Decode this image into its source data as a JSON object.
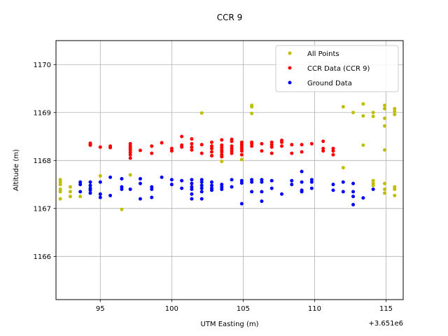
{
  "chart_data": {
    "type": "scatter",
    "title": "CCR 9",
    "xlabel": "UTM Easting (m)",
    "ylabel": "Altitude (m)",
    "x_offset_label": "+3.651e6",
    "x_ticks": [
      "95",
      "100",
      "105",
      "110",
      "115"
    ],
    "y_ticks": [
      "1166",
      "1167",
      "1168",
      "1169",
      "1170"
    ],
    "xlim": [
      3651091.9,
      3651116.2
    ],
    "ylim": [
      1165.1,
      1170.5
    ],
    "grid": true,
    "legend_position": "upper right",
    "series": [
      {
        "name": "All Points",
        "color": "#bfbf00",
        "points": [
          [
            3651092.2,
            1167.6
          ],
          [
            3651092.2,
            1167.55
          ],
          [
            3651092.2,
            1167.5
          ],
          [
            3651092.2,
            1167.4
          ],
          [
            3651092.2,
            1167.35
          ],
          [
            3651092.2,
            1167.2
          ],
          [
            3651092.9,
            1167.45
          ],
          [
            3651092.9,
            1167.35
          ],
          [
            3651092.9,
            1167.25
          ],
          [
            3651093.6,
            1167.5
          ],
          [
            3651093.6,
            1167.25
          ],
          [
            3651095.0,
            1167.68
          ],
          [
            3651095.0,
            1167.3
          ],
          [
            3651096.5,
            1166.98
          ],
          [
            3651097.1,
            1167.7
          ],
          [
            3651102.1,
            1168.99
          ],
          [
            3651103.5,
            1167.98
          ],
          [
            3651104.9,
            1168.02
          ],
          [
            3651105.6,
            1169.15
          ],
          [
            3651105.6,
            1169.12
          ],
          [
            3651105.6,
            1168.98
          ],
          [
            3651112.0,
            1169.12
          ],
          [
            3651112.0,
            1167.85
          ],
          [
            3651112.7,
            1169.0
          ],
          [
            3651113.4,
            1169.18
          ],
          [
            3651113.4,
            1168.93
          ],
          [
            3651113.4,
            1168.32
          ],
          [
            3651114.1,
            1169.0
          ],
          [
            3651114.1,
            1168.92
          ],
          [
            3651114.1,
            1167.58
          ],
          [
            3651114.1,
            1167.52
          ],
          [
            3651114.1,
            1167.48
          ],
          [
            3651114.9,
            1169.15
          ],
          [
            3651114.9,
            1169.08
          ],
          [
            3651114.9,
            1168.88
          ],
          [
            3651114.9,
            1168.72
          ],
          [
            3651114.9,
            1168.22
          ],
          [
            3651114.9,
            1167.52
          ],
          [
            3651114.9,
            1167.4
          ],
          [
            3651114.9,
            1167.32
          ],
          [
            3651115.6,
            1169.08
          ],
          [
            3651115.6,
            1169.02
          ],
          [
            3651115.6,
            1168.96
          ],
          [
            3651115.6,
            1167.45
          ],
          [
            3651115.6,
            1167.4
          ],
          [
            3651115.6,
            1167.27
          ]
        ]
      },
      {
        "name": "CCR Data (CCR 9)",
        "color": "#ff0000",
        "points": [
          [
            3651094.3,
            1168.36
          ],
          [
            3651094.3,
            1168.33
          ],
          [
            3651094.3,
            1168.32
          ],
          [
            3651095.0,
            1168.28
          ],
          [
            3651095.7,
            1168.3
          ],
          [
            3651095.7,
            1168.27
          ],
          [
            3651097.1,
            1168.35
          ],
          [
            3651097.1,
            1168.3
          ],
          [
            3651097.1,
            1168.26
          ],
          [
            3651097.1,
            1168.22
          ],
          [
            3651097.1,
            1168.17
          ],
          [
            3651097.1,
            1168.12
          ],
          [
            3651097.1,
            1168.05
          ],
          [
            3651097.8,
            1168.21
          ],
          [
            3651098.6,
            1168.3
          ],
          [
            3651098.6,
            1168.15
          ],
          [
            3651099.3,
            1168.37
          ],
          [
            3651100.0,
            1168.25
          ],
          [
            3651100.0,
            1168.2
          ],
          [
            3651100.7,
            1168.5
          ],
          [
            3651100.7,
            1168.32
          ],
          [
            3651100.7,
            1168.28
          ],
          [
            3651101.4,
            1168.45
          ],
          [
            3651101.4,
            1168.35
          ],
          [
            3651101.4,
            1168.28
          ],
          [
            3651101.4,
            1168.22
          ],
          [
            3651102.1,
            1168.33
          ],
          [
            3651102.1,
            1168.15
          ],
          [
            3651102.8,
            1168.38
          ],
          [
            3651102.8,
            1168.3
          ],
          [
            3651102.8,
            1168.25
          ],
          [
            3651102.8,
            1168.18
          ],
          [
            3651102.8,
            1168.1
          ],
          [
            3651103.5,
            1168.43
          ],
          [
            3651103.5,
            1168.32
          ],
          [
            3651103.5,
            1168.27
          ],
          [
            3651103.5,
            1168.22
          ],
          [
            3651103.5,
            1168.18
          ],
          [
            3651103.5,
            1168.12
          ],
          [
            3651103.5,
            1168.08
          ],
          [
            3651104.2,
            1168.44
          ],
          [
            3651104.2,
            1168.4
          ],
          [
            3651104.2,
            1168.3
          ],
          [
            3651104.2,
            1168.25
          ],
          [
            3651104.2,
            1168.2
          ],
          [
            3651104.2,
            1168.15
          ],
          [
            3651104.9,
            1168.38
          ],
          [
            3651104.9,
            1168.34
          ],
          [
            3651104.9,
            1168.3
          ],
          [
            3651104.9,
            1168.25
          ],
          [
            3651104.9,
            1168.2
          ],
          [
            3651104.9,
            1168.12
          ],
          [
            3651105.6,
            1168.38
          ],
          [
            3651105.6,
            1168.35
          ],
          [
            3651105.6,
            1168.3
          ],
          [
            3651106.3,
            1168.35
          ],
          [
            3651106.3,
            1168.2
          ],
          [
            3651107.0,
            1168.38
          ],
          [
            3651107.0,
            1168.33
          ],
          [
            3651107.0,
            1168.28
          ],
          [
            3651107.0,
            1168.15
          ],
          [
            3651107.7,
            1168.42
          ],
          [
            3651107.7,
            1168.38
          ],
          [
            3651107.7,
            1168.3
          ],
          [
            3651108.4,
            1168.33
          ],
          [
            3651108.4,
            1168.15
          ],
          [
            3651109.1,
            1168.33
          ],
          [
            3651109.1,
            1168.18
          ],
          [
            3651109.8,
            1168.35
          ],
          [
            3651110.6,
            1168.4
          ],
          [
            3651110.6,
            1168.25
          ],
          [
            3651110.6,
            1168.2
          ],
          [
            3651111.3,
            1168.25
          ],
          [
            3651111.3,
            1168.2
          ],
          [
            3651111.3,
            1168.12
          ]
        ]
      },
      {
        "name": "Ground Data",
        "color": "#0000ff",
        "points": [
          [
            3651093.6,
            1167.55
          ],
          [
            3651093.6,
            1167.5
          ],
          [
            3651093.6,
            1167.35
          ],
          [
            3651094.3,
            1167.55
          ],
          [
            3651094.3,
            1167.48
          ],
          [
            3651094.3,
            1167.42
          ],
          [
            3651094.3,
            1167.38
          ],
          [
            3651094.3,
            1167.32
          ],
          [
            3651095.0,
            1167.55
          ],
          [
            3651095.0,
            1167.3
          ],
          [
            3651095.0,
            1167.23
          ],
          [
            3651095.7,
            1167.65
          ],
          [
            3651095.7,
            1167.27
          ],
          [
            3651096.5,
            1167.62
          ],
          [
            3651096.5,
            1167.45
          ],
          [
            3651096.5,
            1167.4
          ],
          [
            3651097.1,
            1167.4
          ],
          [
            3651097.8,
            1167.62
          ],
          [
            3651097.8,
            1167.52
          ],
          [
            3651097.8,
            1167.2
          ],
          [
            3651098.6,
            1167.45
          ],
          [
            3651098.6,
            1167.4
          ],
          [
            3651098.6,
            1167.23
          ],
          [
            3651099.3,
            1167.65
          ],
          [
            3651100.0,
            1167.6
          ],
          [
            3651100.0,
            1167.5
          ],
          [
            3651100.7,
            1167.58
          ],
          [
            3651100.7,
            1167.42
          ],
          [
            3651101.4,
            1167.6
          ],
          [
            3651101.4,
            1167.52
          ],
          [
            3651101.4,
            1167.45
          ],
          [
            3651101.4,
            1167.4
          ],
          [
            3651101.4,
            1167.3
          ],
          [
            3651101.4,
            1167.2
          ],
          [
            3651102.1,
            1167.6
          ],
          [
            3651102.1,
            1167.55
          ],
          [
            3651102.1,
            1167.48
          ],
          [
            3651102.1,
            1167.42
          ],
          [
            3651102.1,
            1167.35
          ],
          [
            3651102.1,
            1167.2
          ],
          [
            3651102.8,
            1167.55
          ],
          [
            3651102.8,
            1167.48
          ],
          [
            3651102.8,
            1167.42
          ],
          [
            3651102.8,
            1167.38
          ],
          [
            3651103.5,
            1167.5
          ],
          [
            3651103.5,
            1167.45
          ],
          [
            3651103.5,
            1167.4
          ],
          [
            3651104.2,
            1167.6
          ],
          [
            3651104.2,
            1167.45
          ],
          [
            3651104.9,
            1167.58
          ],
          [
            3651104.9,
            1167.53
          ],
          [
            3651104.9,
            1167.1
          ],
          [
            3651105.6,
            1167.6
          ],
          [
            3651105.6,
            1167.55
          ],
          [
            3651105.6,
            1167.35
          ],
          [
            3651106.3,
            1167.6
          ],
          [
            3651106.3,
            1167.55
          ],
          [
            3651106.3,
            1167.35
          ],
          [
            3651106.3,
            1167.15
          ],
          [
            3651107.0,
            1167.58
          ],
          [
            3651107.0,
            1167.42
          ],
          [
            3651107.7,
            1167.3
          ],
          [
            3651108.4,
            1167.58
          ],
          [
            3651108.4,
            1167.5
          ],
          [
            3651109.1,
            1167.77
          ],
          [
            3651109.1,
            1167.55
          ],
          [
            3651109.1,
            1167.38
          ],
          [
            3651109.1,
            1167.35
          ],
          [
            3651109.8,
            1167.6
          ],
          [
            3651109.8,
            1167.55
          ],
          [
            3651109.8,
            1167.42
          ],
          [
            3651111.3,
            1167.5
          ],
          [
            3651111.3,
            1167.38
          ],
          [
            3651112.0,
            1167.55
          ],
          [
            3651112.0,
            1167.35
          ],
          [
            3651112.7,
            1167.52
          ],
          [
            3651112.7,
            1167.35
          ],
          [
            3651112.7,
            1167.25
          ],
          [
            3651112.7,
            1167.08
          ],
          [
            3651113.4,
            1167.22
          ],
          [
            3651114.1,
            1167.4
          ]
        ]
      }
    ]
  }
}
